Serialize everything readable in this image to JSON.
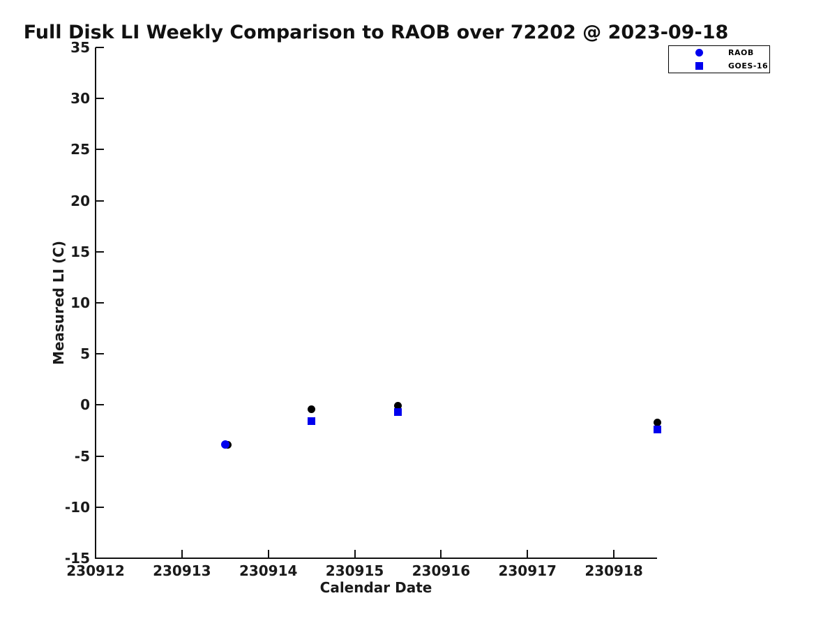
{
  "chart_data": {
    "type": "scatter",
    "title": "Full Disk LI Weekly Comparison to RAOB over 72202 @ 2023-09-18",
    "xlabel": "Calendar Date",
    "ylabel": "Measured LI (C)",
    "xlim": [
      230912,
      230918.5
    ],
    "ylim": [
      -15,
      35
    ],
    "x_ticks": [
      "230912",
      "230913",
      "230914",
      "230915",
      "230916",
      "230917",
      "230918"
    ],
    "x_tick_values": [
      230912,
      230913,
      230914,
      230915,
      230916,
      230917,
      230918
    ],
    "y_ticks": [
      "35",
      "30",
      "25",
      "20",
      "15",
      "10",
      "5",
      "0",
      "-5",
      "-10",
      "-15"
    ],
    "y_tick_values": [
      35,
      30,
      25,
      20,
      15,
      10,
      5,
      0,
      -5,
      -10,
      -15
    ],
    "grid": false,
    "spines": [
      "left",
      "bottom"
    ],
    "tick_direction": "in",
    "legend_position": "top-right-outside",
    "series": [
      {
        "name": "unlabeled-black-dots",
        "in_legend": false,
        "marker": "circle",
        "color": "#000000",
        "size": 11,
        "points": [
          {
            "x": 230913.53,
            "y": -3.9
          },
          {
            "x": 230914.5,
            "y": -0.4
          },
          {
            "x": 230915.5,
            "y": -0.1
          },
          {
            "x": 230918.5,
            "y": -1.7
          }
        ]
      },
      {
        "name": "GOES-16",
        "in_legend": true,
        "marker": "square",
        "color": "#0000ee",
        "size": 11,
        "points": [
          {
            "x": 230914.5,
            "y": -1.6
          },
          {
            "x": 230915.5,
            "y": -0.7
          },
          {
            "x": 230918.5,
            "y": -2.4
          }
        ]
      },
      {
        "name": "RAOB",
        "in_legend": true,
        "marker": "circle",
        "color": "#0000ee",
        "size": 12,
        "points": [
          {
            "x": 230913.5,
            "y": -3.9
          }
        ]
      }
    ],
    "legend": {
      "entries": [
        {
          "label": "RAOB",
          "marker": "circle",
          "color": "#0000ee"
        },
        {
          "label": "GOES-16",
          "marker": "square",
          "color": "#0000ee"
        }
      ]
    },
    "colors": {
      "axis": "#111111",
      "text": "#1a1a1a",
      "marker_blue": "#0000ee",
      "marker_black": "#000000",
      "background": "#ffffff"
    }
  }
}
